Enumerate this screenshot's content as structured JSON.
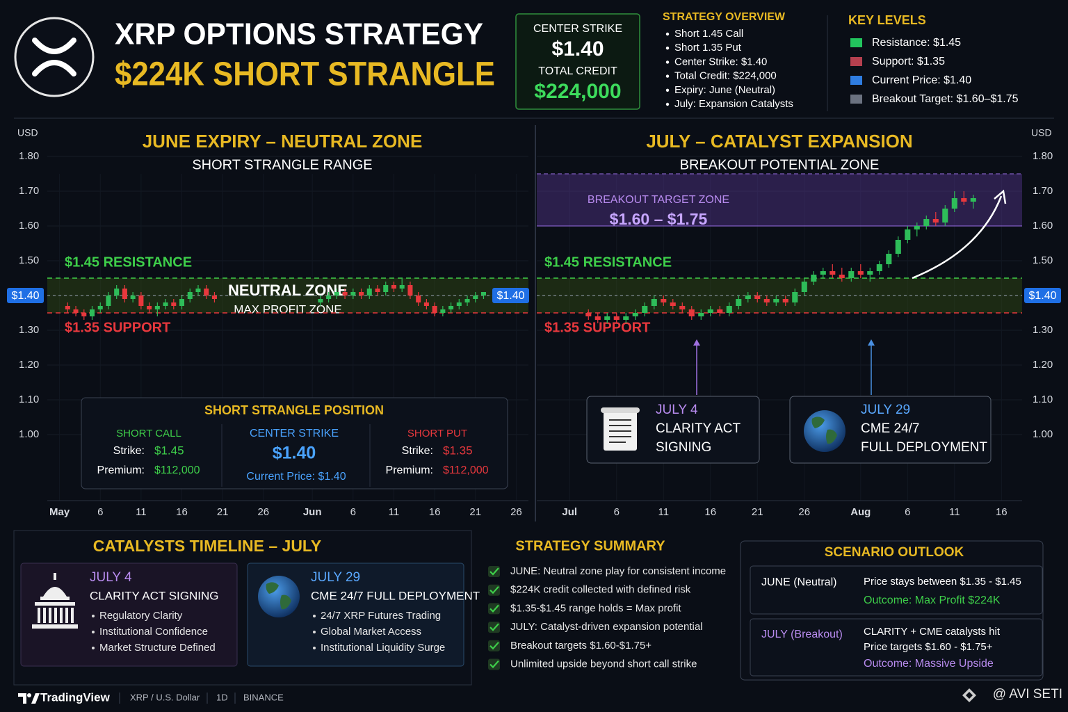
{
  "header": {
    "title": "XRP OPTIONS STRATEGY",
    "subtitle": "$224K SHORT STRANGLE"
  },
  "center_box": {
    "strike_label": "CENTER STRIKE",
    "strike": "$1.40",
    "credit_label": "TOTAL CREDIT",
    "credit": "$224,000"
  },
  "strategy_overview": {
    "title": "STRATEGY OVERVIEW",
    "items": [
      "Short 1.45 Call",
      "Short 1.35 Put",
      "Center Strike: $1.40",
      "Total Credit: $224,000",
      "Expiry: June (Neutral)",
      "July: Expansion Catalysts"
    ]
  },
  "key_levels": {
    "title": "KEY LEVELS",
    "items": [
      {
        "label": "Resistance: $1.45",
        "color": "#22c55e"
      },
      {
        "label": "Support: $1.35",
        "color": "#b5404f"
      },
      {
        "label": "Current Price: $1.40",
        "color": "#2f7de1"
      },
      {
        "label": "Breakout Target: $1.60–$1.75",
        "color": "#6b7280"
      }
    ]
  },
  "chart_data": [
    {
      "type": "candlestick",
      "title": "JUNE EXPIRY – NEUTRAL ZONE",
      "subtitle": "SHORT STRANGLE RANGE",
      "y_label": "USD",
      "ylim": [
        0.81,
        1.85
      ],
      "yticks": [
        {
          "value": 1.0,
          "label": "1.00"
        },
        {
          "value": 1.1,
          "label": "1.10"
        },
        {
          "value": 1.2,
          "label": "1.20"
        },
        {
          "value": 1.3,
          "label": "1.30"
        },
        {
          "value": 1.4,
          "label": "1.40"
        },
        {
          "value": 1.5,
          "label": "1.50"
        },
        {
          "value": 1.6,
          "label": "1.60"
        },
        {
          "value": 1.7,
          "label": "1.70"
        },
        {
          "value": 1.8,
          "label": "1.80"
        }
      ],
      "xlim": [
        -1.5,
        57.5
      ],
      "xticks": [
        {
          "value": 0,
          "label": "May"
        },
        {
          "value": 5,
          "label": "6"
        },
        {
          "value": 10,
          "label": "11"
        },
        {
          "value": 15,
          "label": "16"
        },
        {
          "value": 20,
          "label": "21"
        },
        {
          "value": 25,
          "label": "26"
        },
        {
          "value": 31,
          "label": "Jun"
        },
        {
          "value": 36,
          "label": "6"
        },
        {
          "value": 41,
          "label": "11"
        },
        {
          "value": 46,
          "label": "16"
        },
        {
          "value": 51,
          "label": "21"
        },
        {
          "value": 56,
          "label": "26"
        }
      ],
      "grid": true,
      "up_color": "#2ebd59",
      "down_color": "#e8383d",
      "zones": [
        {
          "from": 1.35,
          "to": 1.45,
          "color": "#3f5f12",
          "label": "NEUTRAL ZONE",
          "sublabel": "MAX PROFIT ZONE"
        }
      ],
      "levels": [
        {
          "value": 1.45,
          "label": "$1.45 RESISTANCE",
          "color": "#3ecf4a",
          "place": "above"
        },
        {
          "value": 1.35,
          "label": "$1.35 SUPPORT",
          "color": "#e8383d",
          "place": "below"
        },
        {
          "value": 1.4,
          "label": "$1.40",
          "color": "#1f6fe5",
          "place": "tag",
          "sides": [
            "left",
            "right"
          ]
        }
      ],
      "x": [
        1,
        2,
        3,
        4,
        5,
        6,
        7,
        8,
        9,
        10,
        11,
        12,
        13,
        14,
        15,
        16,
        17,
        18,
        19,
        32,
        33,
        34,
        35,
        36,
        37,
        38,
        39,
        40,
        41,
        42,
        43,
        44,
        45,
        46,
        47,
        48,
        49,
        50,
        51,
        52
      ],
      "open": [
        1.37,
        1.36,
        1.35,
        1.34,
        1.36,
        1.37,
        1.4,
        1.42,
        1.39,
        1.4,
        1.37,
        1.36,
        1.37,
        1.38,
        1.37,
        1.39,
        1.41,
        1.42,
        1.4,
        1.38,
        1.39,
        1.4,
        1.41,
        1.4,
        1.41,
        1.4,
        1.42,
        1.41,
        1.43,
        1.42,
        1.43,
        1.4,
        1.38,
        1.37,
        1.35,
        1.36,
        1.37,
        1.38,
        1.39,
        1.4
      ],
      "high": [
        1.38,
        1.37,
        1.36,
        1.37,
        1.38,
        1.41,
        1.43,
        1.43,
        1.41,
        1.41,
        1.38,
        1.38,
        1.39,
        1.39,
        1.4,
        1.42,
        1.43,
        1.43,
        1.41,
        1.4,
        1.41,
        1.42,
        1.42,
        1.42,
        1.42,
        1.43,
        1.43,
        1.44,
        1.44,
        1.45,
        1.44,
        1.41,
        1.39,
        1.38,
        1.37,
        1.38,
        1.39,
        1.4,
        1.41,
        1.41
      ],
      "low": [
        1.35,
        1.34,
        1.33,
        1.33,
        1.35,
        1.36,
        1.39,
        1.38,
        1.38,
        1.36,
        1.35,
        1.34,
        1.36,
        1.36,
        1.36,
        1.38,
        1.4,
        1.39,
        1.38,
        1.37,
        1.38,
        1.39,
        1.39,
        1.39,
        1.39,
        1.39,
        1.4,
        1.4,
        1.41,
        1.41,
        1.39,
        1.37,
        1.36,
        1.34,
        1.34,
        1.35,
        1.36,
        1.37,
        1.38,
        1.39
      ],
      "close": [
        1.36,
        1.35,
        1.34,
        1.36,
        1.37,
        1.4,
        1.42,
        1.39,
        1.4,
        1.37,
        1.36,
        1.37,
        1.38,
        1.37,
        1.39,
        1.41,
        1.42,
        1.4,
        1.39,
        1.39,
        1.4,
        1.41,
        1.4,
        1.41,
        1.4,
        1.42,
        1.41,
        1.43,
        1.42,
        1.43,
        1.4,
        1.38,
        1.37,
        1.35,
        1.36,
        1.37,
        1.38,
        1.39,
        1.4,
        1.41
      ]
    },
    {
      "type": "candlestick",
      "title": "JULY – CATALYST EXPANSION",
      "subtitle": "BREAKOUT POTENTIAL ZONE",
      "y_label": "USD",
      "ylim": [
        0.81,
        1.85
      ],
      "yticks": [
        {
          "value": 1.0,
          "label": "1.00"
        },
        {
          "value": 1.1,
          "label": "1.10"
        },
        {
          "value": 1.2,
          "label": "1.20"
        },
        {
          "value": 1.3,
          "label": "1.30"
        },
        {
          "value": 1.4,
          "label": "1.40"
        },
        {
          "value": 1.5,
          "label": "1.50"
        },
        {
          "value": 1.6,
          "label": "1.60"
        },
        {
          "value": 1.7,
          "label": "1.70"
        },
        {
          "value": 1.8,
          "label": "1.80"
        }
      ],
      "xlim": [
        -3.5,
        48.2
      ],
      "xticks": [
        {
          "value": 0,
          "label": "Jul"
        },
        {
          "value": 5,
          "label": "6"
        },
        {
          "value": 10,
          "label": "11"
        },
        {
          "value": 15,
          "label": "16"
        },
        {
          "value": 20,
          "label": "21"
        },
        {
          "value": 25,
          "label": "26"
        },
        {
          "value": 31,
          "label": "Aug"
        },
        {
          "value": 36,
          "label": "6"
        },
        {
          "value": 41,
          "label": "11"
        },
        {
          "value": 46,
          "label": "16"
        }
      ],
      "grid": true,
      "up_color": "#2ebd59",
      "down_color": "#e8383d",
      "zones": [
        {
          "from": 1.35,
          "to": 1.45,
          "color": "#3f5f12"
        },
        {
          "from": 1.6,
          "to": 1.75,
          "color": "#6a3fb0",
          "label": "BREAKOUT TARGET ZONE",
          "sublabel": "$1.60 – $1.75"
        }
      ],
      "levels": [
        {
          "value": 1.45,
          "label": "$1.45 RESISTANCE",
          "color": "#3ecf4a",
          "place": "above"
        },
        {
          "value": 1.35,
          "label": "$1.35 SUPPORT",
          "color": "#e8383d",
          "place": "below"
        },
        {
          "value": 1.4,
          "label": "$1.40",
          "color": "#1f6fe5",
          "place": "tag",
          "sides": [
            "right"
          ]
        }
      ],
      "x": [
        2,
        3,
        4,
        5,
        6,
        7,
        8,
        9,
        10,
        11,
        12,
        13,
        14,
        15,
        16,
        17,
        18,
        19,
        20,
        21,
        22,
        23,
        24,
        25,
        26,
        27,
        28,
        29,
        30,
        31,
        32,
        33,
        34,
        35,
        36,
        37,
        38,
        39,
        40,
        41,
        42,
        43
      ],
      "open": [
        1.35,
        1.34,
        1.33,
        1.34,
        1.33,
        1.34,
        1.35,
        1.37,
        1.39,
        1.38,
        1.37,
        1.36,
        1.34,
        1.35,
        1.36,
        1.35,
        1.37,
        1.39,
        1.4,
        1.39,
        1.38,
        1.39,
        1.38,
        1.41,
        1.44,
        1.46,
        1.47,
        1.46,
        1.45,
        1.47,
        1.46,
        1.47,
        1.49,
        1.52,
        1.56,
        1.59,
        1.6,
        1.62,
        1.61,
        1.65,
        1.68,
        1.67
      ],
      "high": [
        1.36,
        1.35,
        1.35,
        1.35,
        1.35,
        1.36,
        1.38,
        1.4,
        1.4,
        1.39,
        1.38,
        1.37,
        1.36,
        1.37,
        1.37,
        1.38,
        1.4,
        1.41,
        1.41,
        1.4,
        1.4,
        1.4,
        1.42,
        1.45,
        1.47,
        1.48,
        1.49,
        1.48,
        1.48,
        1.49,
        1.48,
        1.5,
        1.53,
        1.57,
        1.6,
        1.61,
        1.63,
        1.64,
        1.66,
        1.7,
        1.7,
        1.69
      ],
      "low": [
        1.33,
        1.32,
        1.32,
        1.32,
        1.32,
        1.33,
        1.34,
        1.36,
        1.37,
        1.36,
        1.35,
        1.33,
        1.33,
        1.34,
        1.34,
        1.34,
        1.36,
        1.38,
        1.38,
        1.37,
        1.37,
        1.37,
        1.37,
        1.4,
        1.43,
        1.45,
        1.45,
        1.44,
        1.44,
        1.45,
        1.44,
        1.46,
        1.48,
        1.51,
        1.55,
        1.57,
        1.59,
        1.6,
        1.6,
        1.64,
        1.66,
        1.65
      ],
      "close": [
        1.34,
        1.33,
        1.34,
        1.33,
        1.34,
        1.35,
        1.37,
        1.39,
        1.38,
        1.37,
        1.36,
        1.34,
        1.35,
        1.36,
        1.35,
        1.37,
        1.39,
        1.4,
        1.39,
        1.38,
        1.39,
        1.38,
        1.41,
        1.44,
        1.46,
        1.47,
        1.46,
        1.45,
        1.47,
        1.46,
        1.47,
        1.49,
        1.52,
        1.56,
        1.59,
        1.6,
        1.62,
        1.61,
        1.65,
        1.68,
        1.67,
        1.68
      ]
    }
  ],
  "position": {
    "title": "SHORT STRANGLE POSITION",
    "call": {
      "title": "SHORT CALL",
      "strike_label": "Strike:",
      "strike": "$1.45",
      "premium_label": "Premium:",
      "premium": "$112,000"
    },
    "center": {
      "title": "CENTER STRIKE",
      "strike": "$1.40",
      "current": "Current Price: $1.40"
    },
    "put": {
      "title": "SHORT PUT",
      "strike_label": "Strike:",
      "strike": "$1.35",
      "premium_label": "Premium:",
      "premium": "$112,000"
    }
  },
  "events": [
    {
      "date": "JULY 4",
      "lines": [
        "CLARITY ACT",
        "SIGNING"
      ]
    },
    {
      "date": "JULY 29",
      "lines": [
        "CME 24/7",
        "FULL DEPLOYMENT"
      ]
    }
  ],
  "catalysts": {
    "title": "CATALYSTS TIMELINE – JULY",
    "cards": [
      {
        "date": "JULY 4",
        "heading": "CLARITY ACT SIGNING",
        "bullets": [
          "Regulatory Clarity",
          "Institutional Confidence",
          "Market Structure Defined"
        ]
      },
      {
        "date": "JULY 29",
        "heading": "CME 24/7 FULL DEPLOYMENT",
        "bullets": [
          "24/7 XRP Futures Trading",
          "Global Market Access",
          "Institutional Liquidity Surge"
        ]
      }
    ]
  },
  "summary": {
    "title": "STRATEGY SUMMARY",
    "items": [
      "JUNE: Neutral zone play for consistent income",
      "$224K credit collected with defined risk",
      "$1.35-$1.45 range holds = Max profit",
      "JULY: Catalyst-driven expansion potential",
      "Breakout targets $1.60-$1.75+",
      "Unlimited upside beyond short call strike"
    ]
  },
  "scenario": {
    "title": "SCENARIO OUTLOOK",
    "rows": [
      {
        "label": "JUNE (Neutral)",
        "lines": [
          "Price stays between $1.35 - $1.45"
        ],
        "outcome": "Outcome: Max Profit $224K"
      },
      {
        "label": "JULY (Breakout)",
        "lines": [
          "CLARITY + CME catalysts hit",
          "Price targets $1.60 - $1.75+"
        ],
        "outcome": "Outcome: Massive Upside"
      }
    ]
  },
  "footer": {
    "brand": "TradingView",
    "pair": "XRP / U.S. Dollar",
    "interval": "1D",
    "exchange": "BINANCE",
    "credit": "@ AVI SETI"
  }
}
